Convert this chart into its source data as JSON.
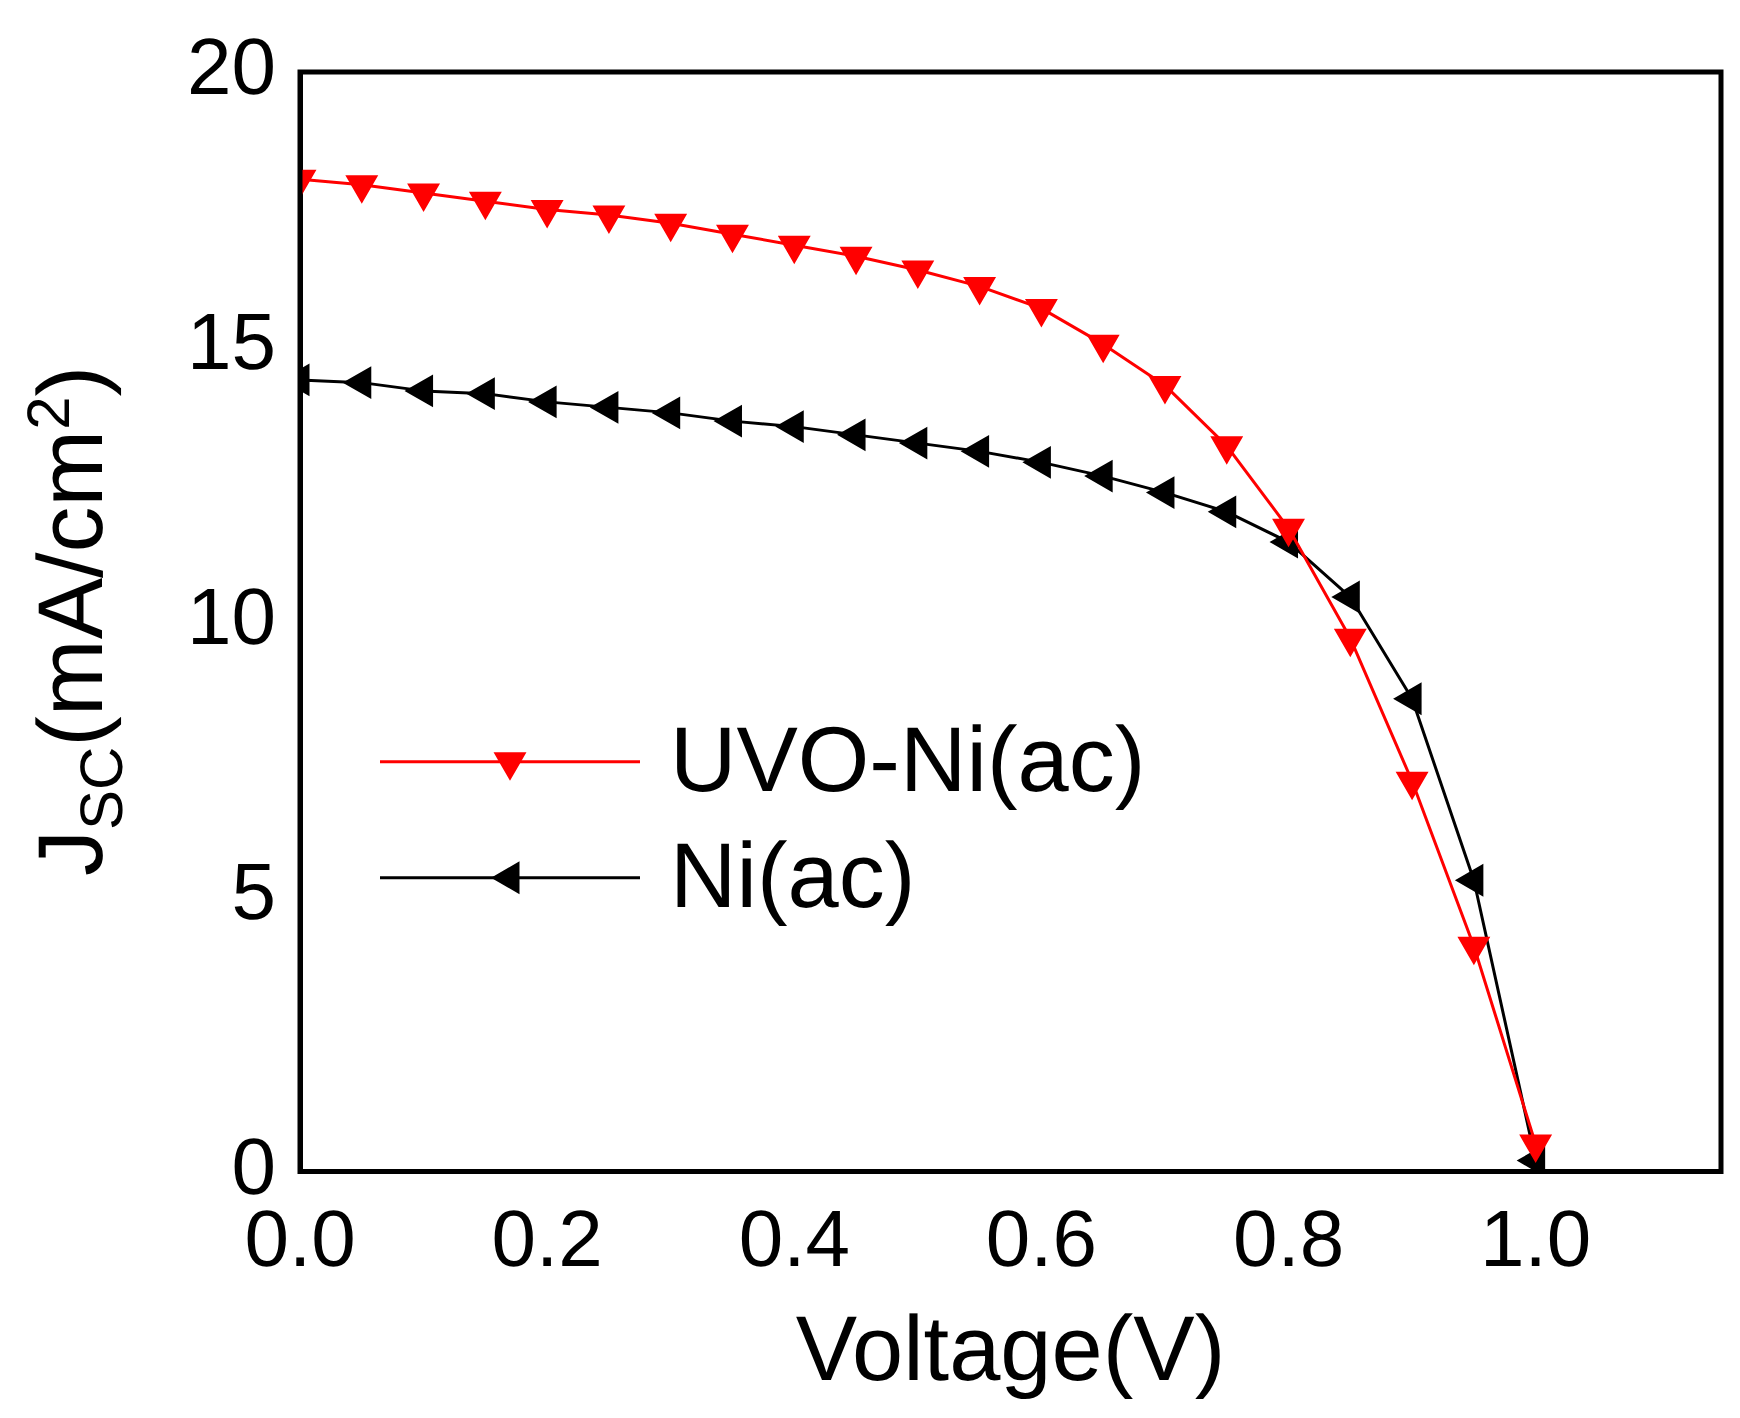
{
  "chart_data": {
    "type": "line",
    "xlabel": "Voltage(V)",
    "ylabel": "J$_{SC}$(mA/cm$^{2}$)",
    "xlim": [
      0,
      1.15
    ],
    "xticks": [
      {
        "value": 0,
        "label": "0.0"
      },
      {
        "value": 0.2,
        "label": "0.2"
      },
      {
        "value": 0.4,
        "label": "0.4"
      },
      {
        "value": 0.6,
        "label": "0.6"
      },
      {
        "value": 0.8,
        "label": "0.8"
      },
      {
        "value": 1,
        "label": "1.0"
      }
    ],
    "ylim": [
      0,
      20
    ],
    "yticks": [
      0,
      5,
      10,
      15,
      20
    ],
    "grid": false,
    "legend": "left",
    "marker": "triangle",
    "line_style": "solid",
    "x": [
      0,
      0.05,
      0.1,
      0.15,
      0.2,
      0.25,
      0.3,
      0.35,
      0.4,
      0.45,
      0.5,
      0.55,
      0.6,
      0.65,
      0.7,
      0.75,
      0.8,
      0.85,
      0.9,
      0.95,
      1.0
    ],
    "series": [
      {
        "name": "UVO-Ni(ac)",
        "color": "#ff0000",
        "values": [
          18.05,
          17.95,
          17.8,
          17.65,
          17.5,
          17.4,
          17.25,
          17.05,
          16.85,
          16.65,
          16.4,
          16.1,
          15.7,
          15.05,
          14.3,
          13.2,
          11.7,
          9.7,
          7.1,
          4.1,
          0.5
        ]
      },
      {
        "name": "Ni(ac)",
        "color": "#000000",
        "values": [
          14.4,
          14.35,
          14.2,
          14.15,
          14.0,
          13.9,
          13.8,
          13.65,
          13.55,
          13.4,
          13.25,
          13.1,
          12.9,
          12.65,
          12.35,
          12.0,
          11.45,
          10.45,
          8.6,
          5.3,
          0.2
        ]
      }
    ]
  }
}
